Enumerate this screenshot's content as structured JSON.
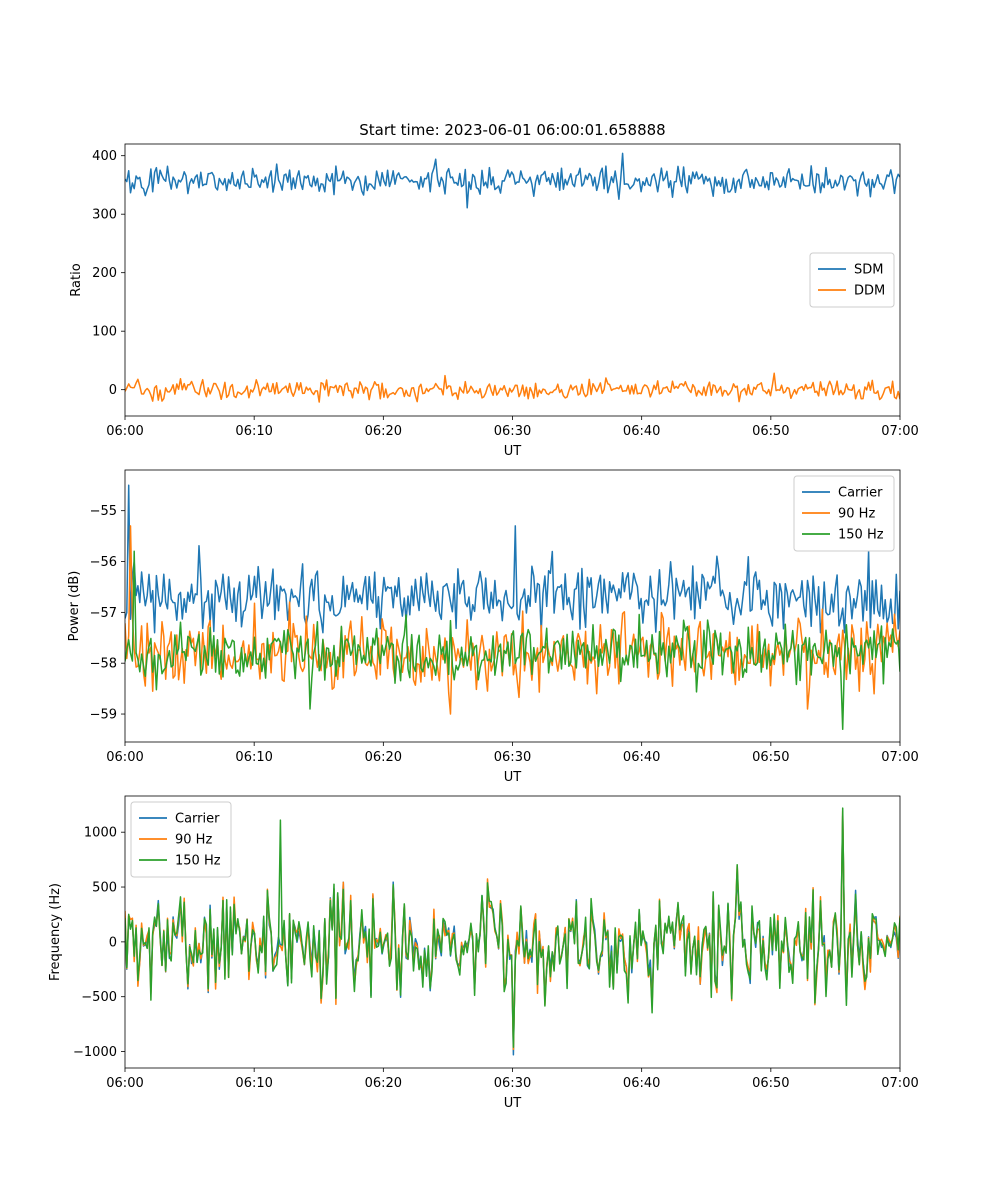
{
  "figure": {
    "title": "Start time: 2023-06-01 06:00:01.658888"
  },
  "colors": {
    "blue": "#1f77b4",
    "orange": "#ff7f0e",
    "green": "#2ca02c"
  },
  "chart_data": [
    {
      "type": "line",
      "title": "Start time: 2023-06-01 06:00:01.658888",
      "xlabel": "UT",
      "ylabel": "Ratio",
      "xlim": [
        "06:00",
        "07:00"
      ],
      "ylim": [
        -45,
        420
      ],
      "xticks": [
        "06:00",
        "06:10",
        "06:20",
        "06:30",
        "06:40",
        "06:50",
        "07:00"
      ],
      "yticks": [
        400,
        300,
        200,
        100,
        0
      ],
      "legend_position": "center-right",
      "grid": false,
      "series": [
        {
          "name": "SDM",
          "color": "#1f77b4",
          "mean": 358,
          "spread": 12,
          "min": 310,
          "max": 404,
          "highlights": [
            {
              "t": "06:26:30",
              "y": 311
            },
            {
              "t": "06:38:30",
              "y": 404
            },
            {
              "t": "06:24",
              "y": 394
            }
          ]
        },
        {
          "name": "DDM",
          "color": "#ff7f0e",
          "mean": 0,
          "spread": 8,
          "min": -22,
          "max": 28,
          "highlights": [
            {
              "t": "06:50:20",
              "y": 28
            },
            {
              "t": "06:24:50",
              "y": 24
            }
          ]
        }
      ]
    },
    {
      "type": "line",
      "title": "",
      "xlabel": "UT",
      "ylabel": "Power (dB)",
      "xlim": [
        "06:00",
        "07:00"
      ],
      "ylim": [
        -59.55,
        -54.2
      ],
      "xticks": [
        "06:00",
        "06:10",
        "06:20",
        "06:30",
        "06:40",
        "06:50",
        "07:00"
      ],
      "yticks": [
        -55,
        -56,
        -57,
        -58,
        -59
      ],
      "legend_position": "top-right",
      "grid": false,
      "series": [
        {
          "name": "Carrier",
          "color": "#1f77b4",
          "mean": -56.7,
          "spread": 0.35,
          "min": -57.4,
          "max": -54.5,
          "highlights": [
            {
              "t": "06:00:20",
              "y": -54.5
            },
            {
              "t": "06:30:10",
              "y": -55.3
            },
            {
              "t": "06:57:30",
              "y": -55.8
            }
          ]
        },
        {
          "name": "90 Hz",
          "color": "#ff7f0e",
          "mean": -57.8,
          "spread": 0.35,
          "min": -59.0,
          "max": -55.3,
          "highlights": [
            {
              "t": "06:00:30",
              "y": -55.3
            },
            {
              "t": "06:25:10",
              "y": -59.0
            },
            {
              "t": "06:52:50",
              "y": -58.9
            }
          ]
        },
        {
          "name": "150 Hz",
          "color": "#2ca02c",
          "mean": -57.8,
          "spread": 0.3,
          "min": -59.3,
          "max": -55.8,
          "highlights": [
            {
              "t": "06:00:40",
              "y": -55.8
            },
            {
              "t": "06:55:30",
              "y": -59.3
            },
            {
              "t": "06:14:20",
              "y": -58.9
            }
          ]
        }
      ]
    },
    {
      "type": "line",
      "title": "",
      "xlabel": "UT",
      "ylabel": "Frequency (Hz)",
      "xlim": [
        "06:00",
        "07:00"
      ],
      "ylim": [
        -1150,
        1330
      ],
      "xticks": [
        "06:00",
        "06:10",
        "06:20",
        "06:30",
        "06:40",
        "06:50",
        "07:00"
      ],
      "yticks": [
        1000,
        500,
        0,
        -500,
        -1000
      ],
      "legend_position": "top-left",
      "grid": false,
      "series": [
        {
          "name": "Carrier",
          "color": "#1f77b4",
          "mean": 0,
          "spread": 400,
          "min": -1030,
          "max": 1150,
          "highlights": [
            {
              "t": "06:30:00",
              "y": -1030
            },
            {
              "t": "06:55:30",
              "y": 1150
            }
          ]
        },
        {
          "name": "90 Hz",
          "color": "#ff7f0e",
          "mean": 0,
          "spread": 420,
          "min": -980,
          "max": 1190,
          "highlights": [
            {
              "t": "06:30:00",
              "y": -980
            },
            {
              "t": "06:55:30",
              "y": 1190
            }
          ]
        },
        {
          "name": "150 Hz",
          "color": "#2ca02c",
          "mean": 0,
          "spread": 440,
          "min": -960,
          "max": 1220,
          "highlights": [
            {
              "t": "06:30:00",
              "y": -960
            },
            {
              "t": "06:55:30",
              "y": 1220
            },
            {
              "t": "06:12:00",
              "y": 1110
            }
          ]
        }
      ]
    }
  ]
}
